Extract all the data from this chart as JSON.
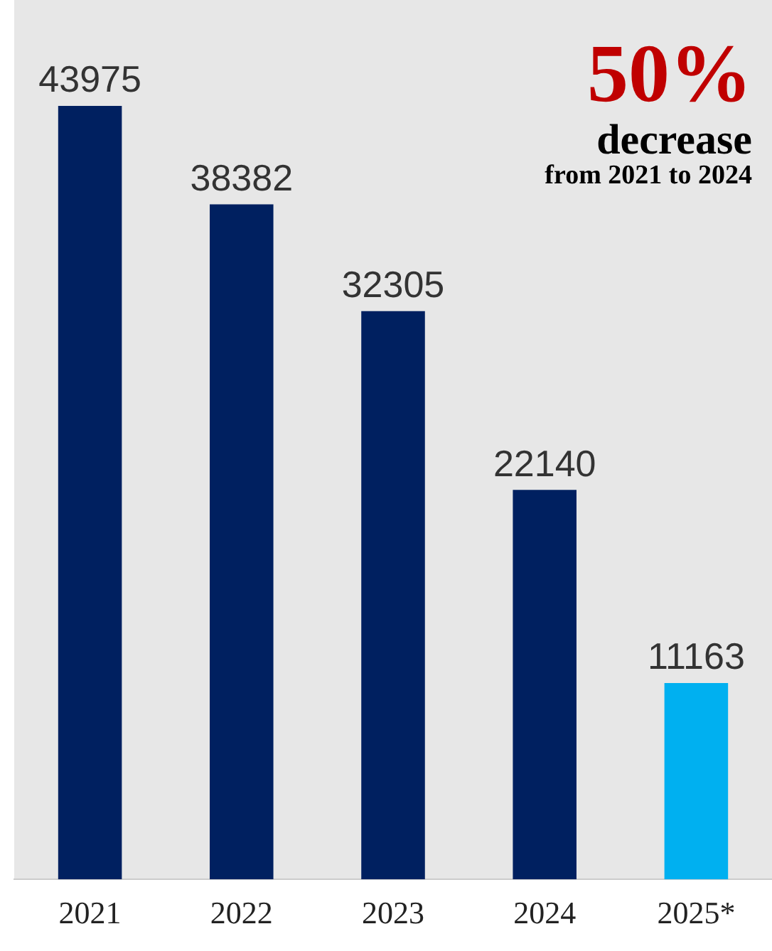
{
  "chart_data": {
    "type": "bar",
    "categories": [
      "2021",
      "2022",
      "2023",
      "2024",
      "2025*"
    ],
    "values": [
      43975,
      38382,
      32305,
      22140,
      11163
    ],
    "colors": [
      "#002060",
      "#002060",
      "#002060",
      "#002060",
      "#00b0f0"
    ],
    "data_labels": true,
    "grid": false,
    "legend": false,
    "annotations": [
      "50%",
      "decrease",
      "from 2021 to 2024"
    ]
  }
}
